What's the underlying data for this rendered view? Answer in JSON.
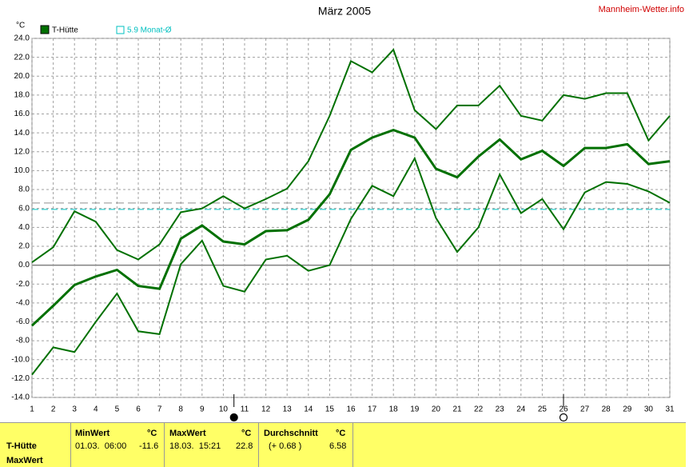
{
  "chart_data": {
    "type": "line",
    "title": "März 2005",
    "source": "Mannheim-Wetter.info",
    "y_unit": "°C",
    "x": [
      1,
      2,
      3,
      4,
      5,
      6,
      7,
      8,
      9,
      10,
      11,
      12,
      13,
      14,
      15,
      16,
      17,
      18,
      19,
      20,
      21,
      22,
      23,
      24,
      25,
      26,
      27,
      28,
      29,
      30,
      31
    ],
    "xlim": [
      1,
      31
    ],
    "xticks": [
      1,
      2,
      3,
      4,
      5,
      6,
      7,
      8,
      9,
      10,
      11,
      12,
      13,
      14,
      15,
      16,
      17,
      18,
      19,
      20,
      21,
      22,
      23,
      24,
      25,
      26,
      27,
      28,
      29,
      30,
      31
    ],
    "ylim": [
      -14,
      24
    ],
    "yticks": [
      {
        "value": -14,
        "label": "-14.0"
      },
      {
        "value": -12,
        "label": "-12.0"
      },
      {
        "value": -10,
        "label": "-10.0"
      },
      {
        "value": -8,
        "label": "-8.0"
      },
      {
        "value": -6,
        "label": "-6.0"
      },
      {
        "value": -4,
        "label": "-4.0"
      },
      {
        "value": -2,
        "label": "-2.0"
      },
      {
        "value": 0,
        "label": "0.0"
      },
      {
        "value": 2,
        "label": "2.0"
      },
      {
        "value": 4,
        "label": "4.0"
      },
      {
        "value": 6,
        "label": "6.0"
      },
      {
        "value": 8,
        "label": "8.0"
      },
      {
        "value": 10,
        "label": "10.0"
      },
      {
        "value": 12,
        "label": "12.0"
      },
      {
        "value": 14,
        "label": "14.0"
      },
      {
        "value": 16,
        "label": "16.0"
      },
      {
        "value": 18,
        "label": "18.0"
      },
      {
        "value": 20,
        "label": "20.0"
      },
      {
        "value": 22,
        "label": "22.0"
      },
      {
        "value": 24,
        "label": "24.0"
      }
    ],
    "grid": true,
    "series": [
      {
        "name": "T-Hütte",
        "color": "#007000",
        "values": [
          -6.4,
          -4.3,
          -2.1,
          -1.2,
          -0.5,
          -2.2,
          -2.5,
          2.8,
          4.2,
          2.5,
          2.2,
          3.6,
          3.7,
          4.8,
          7.5,
          12.2,
          13.5,
          14.3,
          13.5,
          10.2,
          9.3,
          11.5,
          13.3,
          11.2,
          12.1,
          10.5,
          12.4,
          12.4,
          12.8,
          10.7,
          11.0
        ]
      },
      {
        "color": "#007000",
        "values": [
          0.3,
          1.9,
          5.7,
          4.6,
          1.6,
          0.6,
          2.2,
          5.6,
          6.0,
          7.3,
          6.0,
          7.0,
          8.1,
          11.0,
          15.8,
          21.6,
          20.4,
          22.8,
          16.4,
          14.4,
          16.9,
          16.9,
          19.0,
          15.8,
          15.3,
          18.0,
          17.6,
          18.2,
          18.2,
          13.2,
          15.8
        ]
      },
      {
        "color": "#007000",
        "values": [
          -11.6,
          -8.7,
          -9.2,
          -6.0,
          -3.0,
          -7.0,
          -7.3,
          0.1,
          2.6,
          -2.2,
          -2.8,
          0.6,
          1.0,
          -0.6,
          0.0,
          4.9,
          8.4,
          7.3,
          11.3,
          5.0,
          1.4,
          4.0,
          9.6,
          5.5,
          7.0,
          3.8,
          7.7,
          8.8,
          8.6,
          7.8,
          6.6
        ]
      }
    ],
    "reference_line": {
      "value": 5.9,
      "label": "5.9 Monat-Ø",
      "color": "#00c0c0"
    },
    "moon_phases": [
      {
        "x": 10.5,
        "filled": true
      },
      {
        "x": 26,
        "filled": false
      }
    ]
  },
  "summary_table": {
    "row_labels": [
      "T-Hütte",
      "MaxWert"
    ],
    "columns": [
      {
        "header": "MinWert",
        "unit": "°C",
        "when": "01.03.  06:00",
        "value": "-11.6"
      },
      {
        "header": "MaxWert",
        "unit": "°C",
        "when": "18.03.  15:21",
        "value": "22.8"
      },
      {
        "header": "Durchschnitt",
        "unit": "°C",
        "when": "(+ 0.68 )",
        "value": 6.58
      }
    ]
  }
}
